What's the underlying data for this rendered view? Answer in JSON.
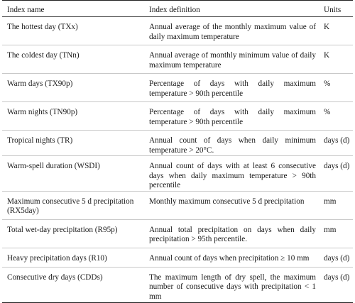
{
  "table": {
    "headers": [
      "Index name",
      "Index definition",
      "Units"
    ],
    "rows": [
      {
        "name": "The hottest day (TXx)",
        "definition": "Annual average of the monthly maximum value of daily maximum temperature",
        "units": "K"
      },
      {
        "name": "The coldest day (TNn)",
        "definition": "Annual average of monthly minimum value of daily maximum temperature",
        "units": "K"
      },
      {
        "name": "Warm days (TX90p)",
        "definition": "Percentage of days with daily maximum temperature > 90th percentile",
        "units": "%"
      },
      {
        "name": "Warm nights (TN90p)",
        "definition": "Percentage of days with daily maximum temperature > 90th percentile",
        "units": "%"
      },
      {
        "name": "Tropical nights (TR)",
        "definition": "Annual count of days when daily minimum temperature > 20°C.",
        "units": "days (d)"
      },
      {
        "name": "Warm-spell duration (WSDI)",
        "definition": "Annual count of days with at least 6 consecutive days when daily maximum temperature > 90th percentile",
        "units": "days (d)"
      },
      {
        "name": "Maximum consecutive 5 d precipitation (RX5day)",
        "definition": "Monthly maximum consecutive 5 d precipitation",
        "units": "mm"
      },
      {
        "name": "Total wet-day precipitation (R95p)",
        "definition": "Annual total precipitation on days when daily precipitation > 95th percentile.",
        "units": "mm"
      },
      {
        "name": "Heavy precipitation days (R10)",
        "definition": "Annual count of days when precipitation ≥ 10 mm",
        "units": "days (d)"
      },
      {
        "name": "Consecutive dry days (CDDs)",
        "definition": "The maximum length of dry spell, the maximum number of consecutive days with precipitation < 1 mm",
        "units": "days (d)"
      }
    ]
  }
}
